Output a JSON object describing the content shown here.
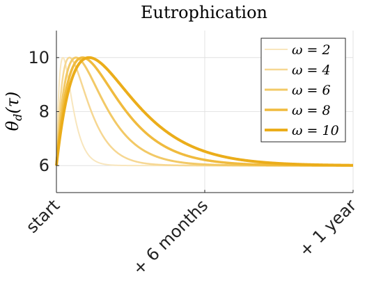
{
  "chart_data": {
    "type": "line",
    "title": "Eutrophication",
    "ylabel": "θ_d(τ)",
    "xlabel": "",
    "x_ticks": [
      {
        "t": 0,
        "label": "start"
      },
      {
        "t": 0.5,
        "label": "+ 6 months"
      },
      {
        "t": 1,
        "label": "+ 1 year"
      }
    ],
    "xlim": [
      0,
      1
    ],
    "ylim": [
      5,
      11
    ],
    "y_ticks": [
      6,
      8,
      10
    ],
    "grid": true,
    "legend_position": "top-right",
    "baseline": 6,
    "peak": 10,
    "series": [
      {
        "name": "ω = 2",
        "omega": 2,
        "peak_t": 0.022,
        "color": "#f8e6bd"
      },
      {
        "name": "ω = 4",
        "omega": 4,
        "peak_t": 0.044,
        "color": "#f6d792"
      },
      {
        "name": "ω = 6",
        "omega": 6,
        "peak_t": 0.066,
        "color": "#f2c966"
      },
      {
        "name": "ω = 8",
        "omega": 8,
        "peak_t": 0.088,
        "color": "#f0bb3e"
      },
      {
        "name": "ω = 10",
        "omega": 10,
        "peak_t": 0.11,
        "color": "#ebad1a"
      }
    ]
  }
}
